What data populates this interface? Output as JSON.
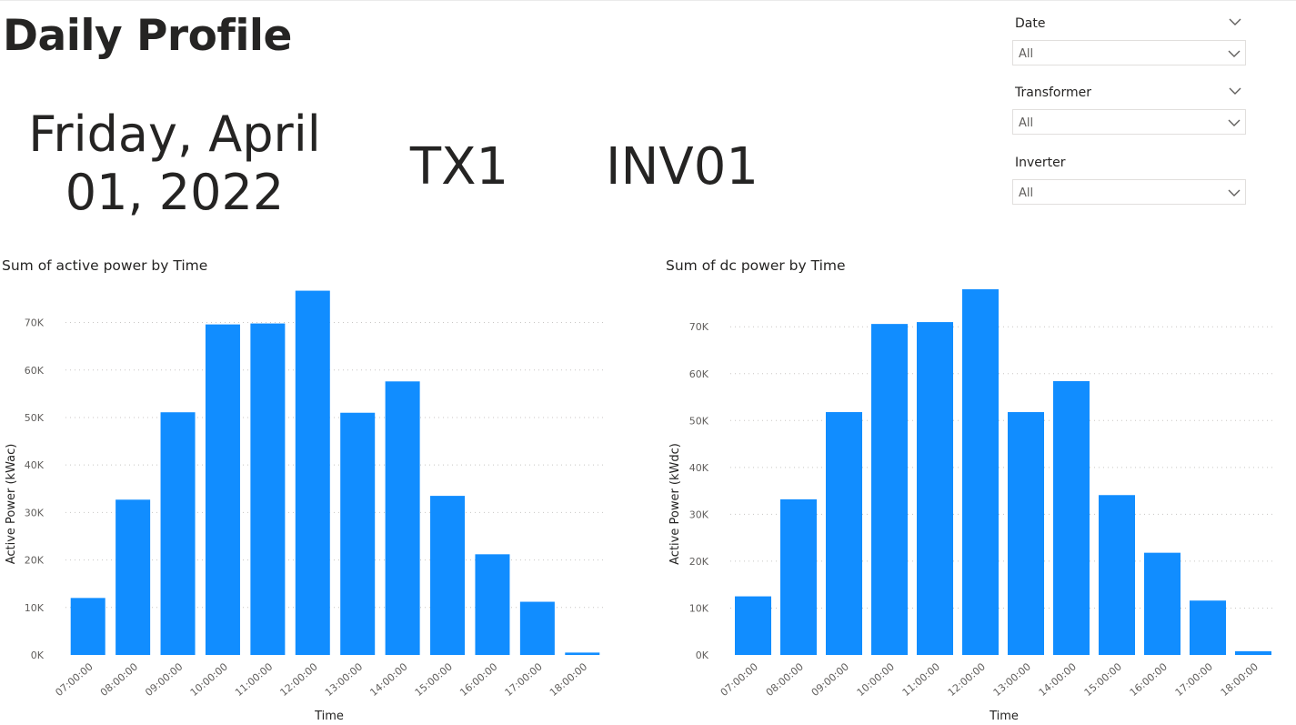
{
  "page": {
    "title": "Daily Profile"
  },
  "cards": {
    "date": "Friday, April 01, 2022",
    "transformer": "TX1",
    "inverter": "INV01"
  },
  "filters": [
    {
      "label": "Date",
      "value": "All"
    },
    {
      "label": "Transformer",
      "value": "All"
    },
    {
      "label": "Inverter",
      "value": "All"
    }
  ],
  "colors": {
    "bar": "#118DFF",
    "gridline": "#c8c6c4",
    "text": "#252423",
    "tick_text": "#605e5c"
  },
  "icons": {
    "slicer_header": "chevron-down-icon",
    "dropdown": "chevron-down-icon"
  },
  "chart_data": [
    {
      "type": "bar",
      "title": "Sum of active power by Time",
      "xlabel": "Time",
      "ylabel": "Active Power (kWac)",
      "categories": [
        "07:00:00",
        "08:00:00",
        "09:00:00",
        "10:00:00",
        "11:00:00",
        "12:00:00",
        "13:00:00",
        "14:00:00",
        "15:00:00",
        "16:00:00",
        "17:00:00",
        "18:00:00"
      ],
      "values": [
        12000,
        32700,
        51100,
        69600,
        69800,
        76700,
        51000,
        57600,
        33500,
        21200,
        11200,
        500
      ],
      "yticks": [
        0,
        10000,
        20000,
        30000,
        40000,
        50000,
        60000,
        70000
      ],
      "ytick_labels": [
        "0K",
        "10K",
        "20K",
        "30K",
        "40K",
        "50K",
        "60K",
        "70K"
      ],
      "ylim": [
        0,
        77000
      ],
      "grid": true
    },
    {
      "type": "bar",
      "title": "Sum of dc power by Time",
      "xlabel": "Time",
      "ylabel": "Active Power (kWdc)",
      "categories": [
        "07:00:00",
        "08:00:00",
        "09:00:00",
        "10:00:00",
        "11:00:00",
        "12:00:00",
        "13:00:00",
        "14:00:00",
        "15:00:00",
        "16:00:00",
        "17:00:00",
        "18:00:00"
      ],
      "values": [
        12500,
        33200,
        51800,
        70600,
        71000,
        78000,
        51800,
        58400,
        34100,
        21800,
        11600,
        800
      ],
      "yticks": [
        0,
        10000,
        20000,
        30000,
        40000,
        50000,
        60000,
        70000
      ],
      "ytick_labels": [
        "0K",
        "10K",
        "20K",
        "30K",
        "40K",
        "50K",
        "60K",
        "70K"
      ],
      "ylim": [
        0,
        78000
      ],
      "grid": true
    }
  ]
}
